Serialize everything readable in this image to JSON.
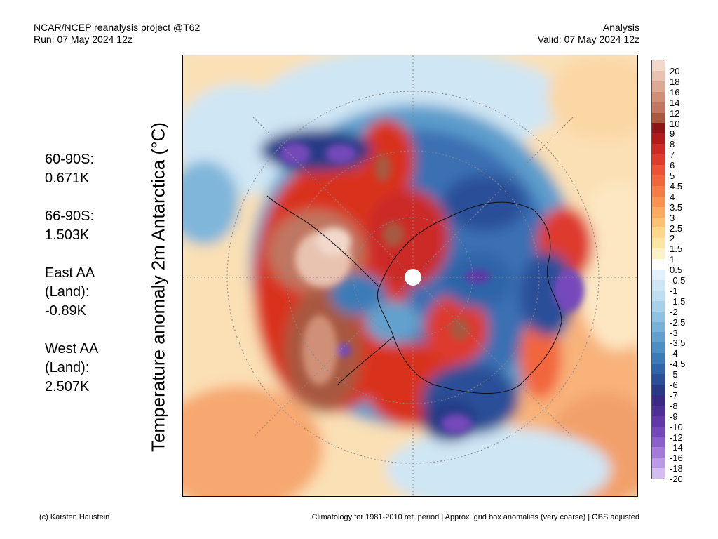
{
  "header": {
    "left_line1": "NCAR/NCEP reanalysis project @T62",
    "left_line2": "Run: 07 May 2024 12z",
    "right_line1": "Analysis",
    "right_line2": "Valid: 07 May 2024 12z"
  },
  "stats": [
    {
      "lines": [
        "60-90S:",
        "0.671K"
      ]
    },
    {
      "lines": [
        "66-90S:",
        "1.503K"
      ]
    },
    {
      "lines": [
        "East AA",
        "(Land):",
        "-0.89K"
      ]
    },
    {
      "lines": [
        "West AA",
        "(Land):",
        "2.507K"
      ]
    }
  ],
  "axis_label": "Temperature anomaly 2m Antarctica (°C)",
  "colorbar": {
    "labels": [
      "20",
      "18",
      "16",
      "14",
      "12",
      "10",
      "9",
      "8",
      "7",
      "6",
      "5",
      "4.5",
      "4",
      "3.5",
      "3",
      "2.5",
      "2",
      "1.5",
      "1",
      "0.5",
      "-0.5",
      "-1",
      "-1.5",
      "-2",
      "-2.5",
      "-3",
      "-3.5",
      "-4",
      "-4.5",
      "-5",
      "-6",
      "-7",
      "-8",
      "-9",
      "-10",
      "-12",
      "-14",
      "-16",
      "-18",
      "-20"
    ],
    "colors": [
      "#f2d9cc",
      "#e8c3b0",
      "#dca993",
      "#cf9077",
      "#c07660",
      "#a8583f",
      "#8e1416",
      "#b21a1c",
      "#cc2a25",
      "#de3b2e",
      "#ec5236",
      "#f2663c",
      "#f57c46",
      "#f89352",
      "#fbab60",
      "#fcc273",
      "#fdd88a",
      "#fde6a4",
      "#fef3c8",
      "#ffffff",
      "#e3f1fa",
      "#cfe7f5",
      "#bddff0",
      "#a6d1e9",
      "#8fc2e1",
      "#78b2d8",
      "#62a1ce",
      "#4d8fc4",
      "#3b7bb8",
      "#2f65a8",
      "#2a4f98",
      "#283a86",
      "#3a2a84",
      "#4d2f96",
      "#6038a8",
      "#7448ba",
      "#8a60cc",
      "#a27bdb",
      "#bb9ae6",
      "#d3bdf0"
    ]
  },
  "footer": {
    "left": "(c) Karsten Haustein",
    "right": "Climatology for 1981-2010 ref. period | Approx. grid box anomalies (very coarse) | OBS adjusted"
  }
}
